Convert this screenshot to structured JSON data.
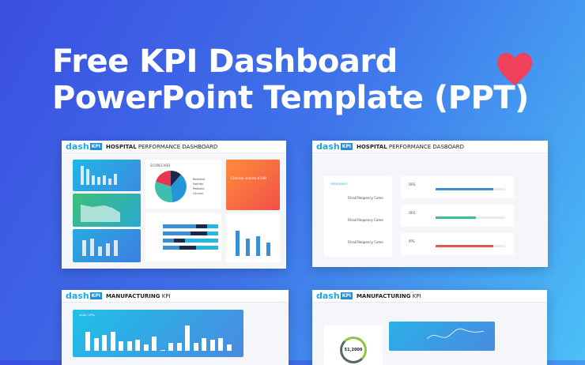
{
  "headline": {
    "line1": "Free KPI Dashboard",
    "line2": "PowerPoint Template (PPT)"
  },
  "colors": {
    "heart": "#f0405a",
    "accent": "#1fa7e0"
  },
  "icons": [
    "heart-icon"
  ],
  "cards": [
    {
      "logo": "dash",
      "logo_badge": "KPI",
      "title_bold": "HOSPITAL",
      "title_rest": " PERFORMANCE DASHBOARD",
      "pie_title": "SCORECARD",
      "legend": [
        "Resident",
        "Fertility",
        "Pediatric",
        "Clinical"
      ],
      "orange_title": "Clinical scores  $148"
    },
    {
      "logo": "dash",
      "logo_badge": "KPI",
      "title_bold": "HOSPITAL",
      "title_rest": " PERFORMANCE DASBOARD",
      "list_title": "FREQUENCY",
      "items": [
        "Fitrail Reopency Come",
        "Fitrail Reopency Come",
        "Fitrail Reopency Come"
      ],
      "rows": [
        {
          "label": "DRS",
          "fill": 0.83,
          "color": "#3a8fd6"
        },
        {
          "label": "ORS",
          "fill": 0.58,
          "color": "#3bbf9a"
        },
        {
          "label": "PPS",
          "fill": 0.83,
          "color": "#e8584a"
        }
      ]
    },
    {
      "logo": "dash",
      "logo_badge": "KPI",
      "title_bold": "MANUFACTURING",
      "title_rest": " KPI",
      "chart_label": "Units / KPIs",
      "bars": [
        60,
        40,
        50,
        60,
        30,
        30,
        35,
        20,
        45,
        2,
        25,
        25,
        80,
        25,
        40,
        35,
        40,
        20
      ]
    },
    {
      "logo": "dash",
      "logo_badge": "KPI",
      "title_bold": "MANUFACTURING",
      "title_rest": " KPI",
      "gauge_value": "51,2000"
    }
  ]
}
